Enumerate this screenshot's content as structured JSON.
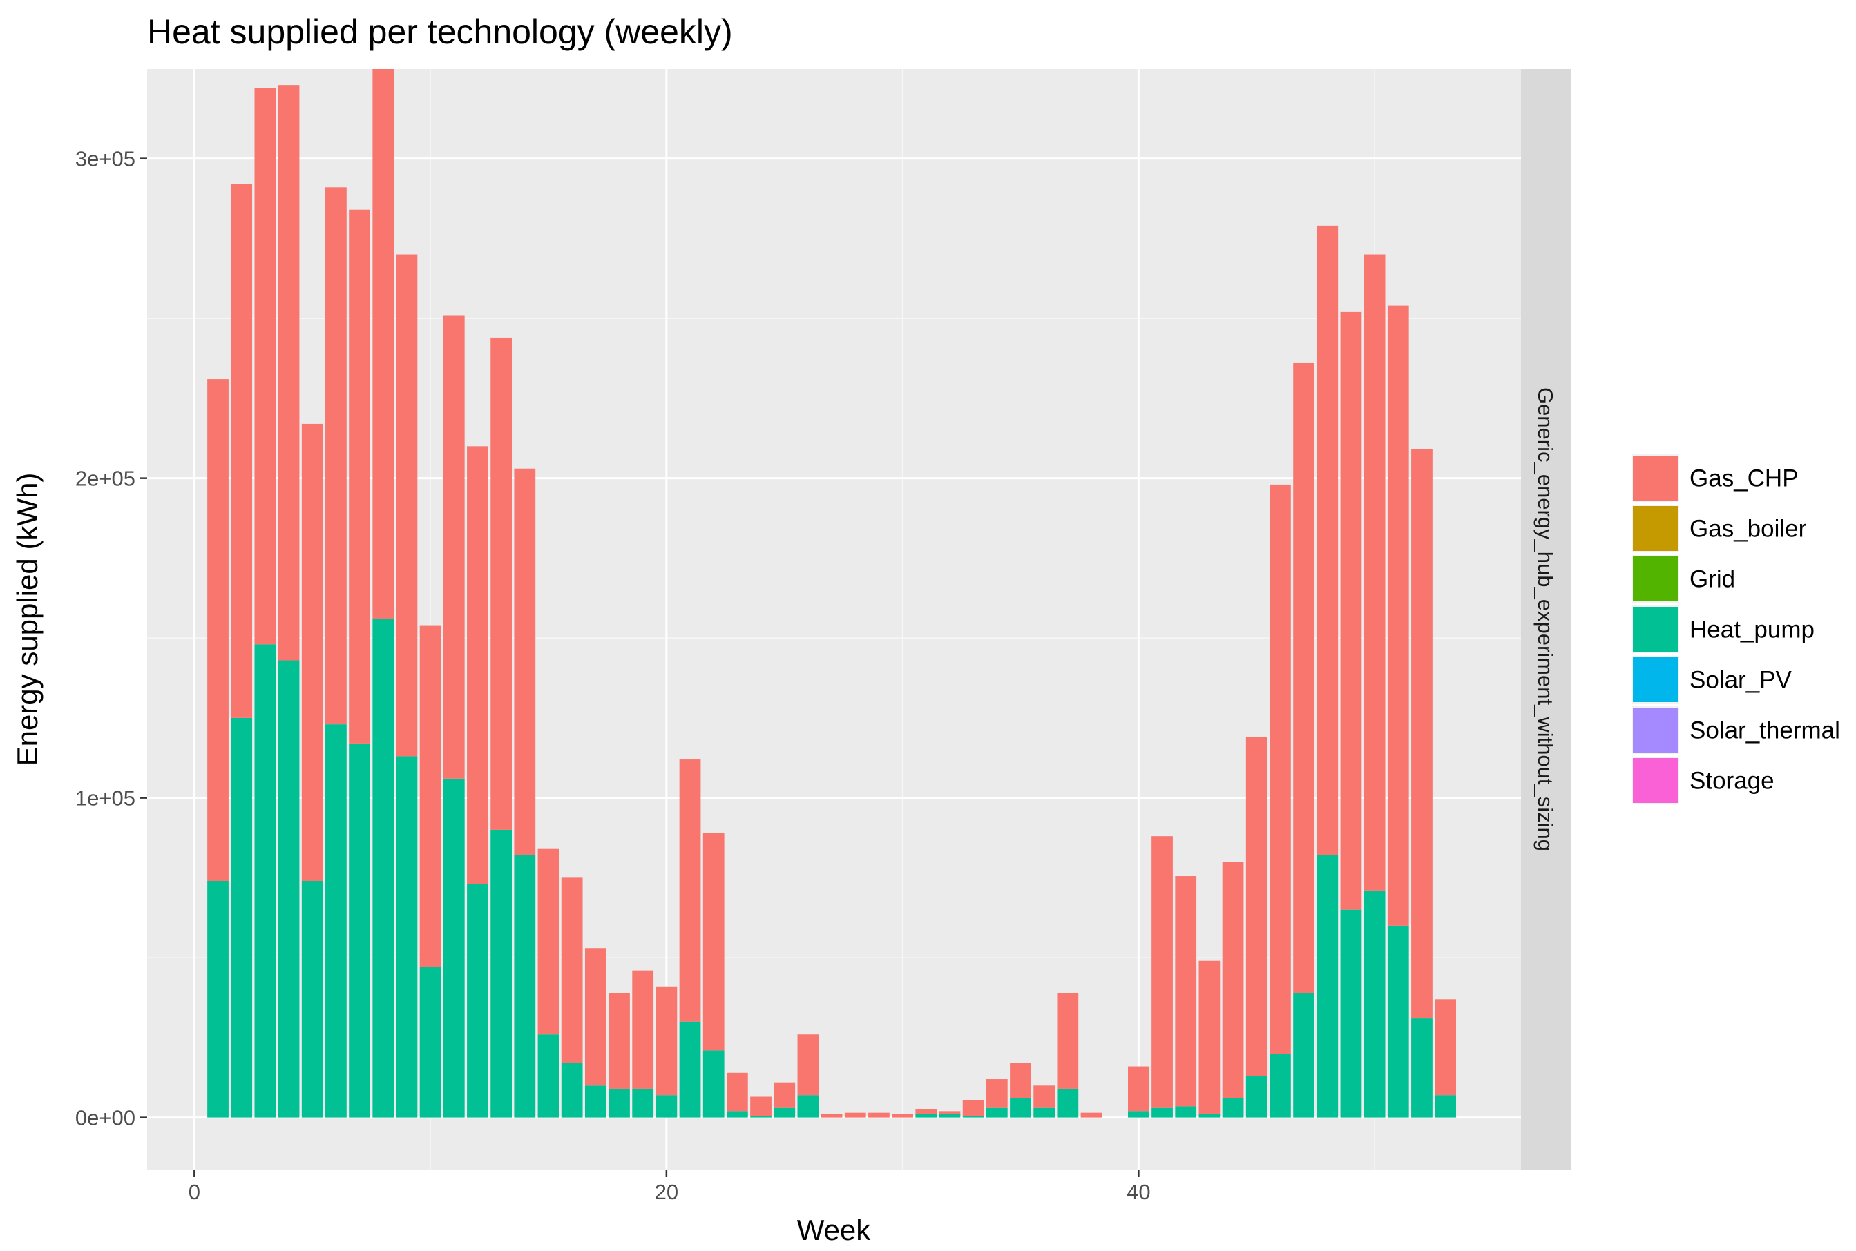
{
  "chart_data": {
    "type": "bar",
    "stacked": true,
    "title": "Heat supplied per technology (weekly)",
    "xlabel": "Week",
    "ylabel": "Energy supplied (kWh)",
    "facet_label": "Generic_energy_hub_experiment_without_sizing",
    "xlim": [
      -2,
      56.2
    ],
    "ylim": [
      -16500,
      328000
    ],
    "x_ticks": [
      {
        "value": 0,
        "label": "0"
      },
      {
        "value": 20,
        "label": "20"
      },
      {
        "value": 40,
        "label": "40"
      }
    ],
    "y_ticks": [
      {
        "value": 0,
        "label": "0e+00"
      },
      {
        "value": 100000,
        "label": "1e+05"
      },
      {
        "value": 200000,
        "label": "2e+05"
      },
      {
        "value": 300000,
        "label": "3e+05"
      }
    ],
    "minor_x": [
      10,
      30,
      50
    ],
    "minor_y": [
      50000,
      150000,
      250000
    ],
    "grid": true,
    "legend_position": "right",
    "legend": [
      {
        "name": "Gas_CHP",
        "color": "#F8766D"
      },
      {
        "name": "Gas_boiler",
        "color": "#C49A00"
      },
      {
        "name": "Grid",
        "color": "#53B400"
      },
      {
        "name": "Heat_pump",
        "color": "#00C094"
      },
      {
        "name": "Solar_PV",
        "color": "#00B6EB"
      },
      {
        "name": "Solar_thermal",
        "color": "#A58AFF"
      },
      {
        "name": "Storage",
        "color": "#FB61D7"
      }
    ],
    "x": [
      1,
      2,
      3,
      4,
      5,
      6,
      7,
      8,
      9,
      10,
      11,
      12,
      13,
      14,
      15,
      16,
      17,
      18,
      19,
      20,
      21,
      22,
      23,
      24,
      25,
      26,
      27,
      28,
      29,
      30,
      31,
      32,
      33,
      34,
      35,
      36,
      37,
      38,
      39,
      40,
      41,
      42,
      43,
      44,
      45,
      46,
      47,
      48,
      49,
      50,
      51,
      52,
      53
    ],
    "series": [
      {
        "name": "Heat_pump",
        "color": "#00C094",
        "values": [
          74000,
          125000,
          148000,
          143000,
          74000,
          123000,
          117000,
          156000,
          113000,
          47000,
          106000,
          73000,
          90000,
          82000,
          26000,
          17000,
          10000,
          9000,
          9000,
          7000,
          30000,
          21000,
          2000,
          500,
          3000,
          7000,
          0,
          0,
          0,
          0,
          1000,
          1000,
          500,
          3000,
          6000,
          3000,
          9000,
          0,
          0,
          2000,
          3000,
          3500,
          1000,
          6000,
          13000,
          20000,
          39000,
          82000,
          65000,
          71000,
          60000,
          31000,
          7000
        ]
      },
      {
        "name": "Gas_CHP",
        "color": "#F8766D",
        "values": [
          157000,
          167000,
          174000,
          180000,
          143000,
          168000,
          167000,
          172000,
          157000,
          107000,
          145000,
          137000,
          154000,
          121000,
          58000,
          58000,
          43000,
          30000,
          37000,
          34000,
          82000,
          68000,
          12000,
          6000,
          8000,
          19000,
          1000,
          1500,
          1500,
          1000,
          1500,
          1000,
          5000,
          9000,
          11000,
          7000,
          30000,
          1500,
          0,
          14000,
          85000,
          72000,
          48000,
          74000,
          106000,
          178000,
          197000,
          197000,
          187000,
          199000,
          194000,
          178000,
          30000
        ]
      }
    ]
  }
}
